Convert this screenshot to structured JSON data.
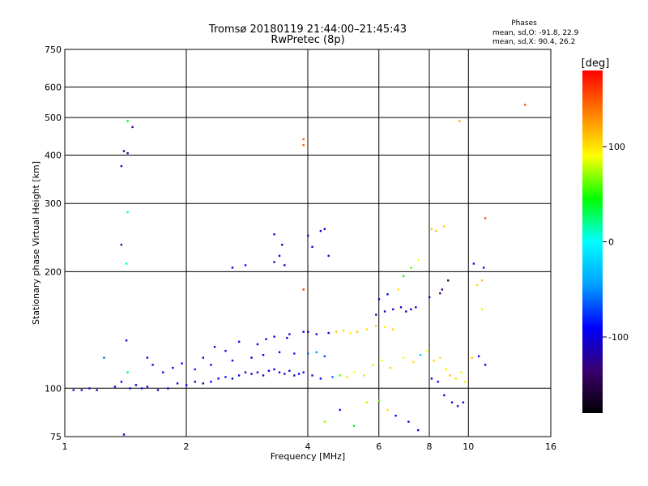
{
  "chart_data": {
    "type": "scatter",
    "title": "Tromsø 20180119 21:44:00–21:45:43",
    "subtitle": "RwPretec (8p)",
    "xlabel": "Frequency [MHz]",
    "ylabel": "Stationary phase Virtual Height [km]",
    "x_scale": "log",
    "y_scale": "log",
    "xlim": [
      1,
      16
    ],
    "ylim": [
      75,
      750
    ],
    "x_ticks": [
      "1",
      "2",
      "4",
      "6",
      "8",
      "10",
      "16"
    ],
    "y_ticks": [
      "75",
      "100",
      "200",
      "300",
      "400",
      "500",
      "600",
      "750"
    ],
    "grid": true,
    "phase_stats": {
      "heading": "Phases",
      "line_o": "mean, sd,O: -91.8, 22.9",
      "line_x": "mean, sd,X:  90.4, 26.2"
    },
    "colorbar": {
      "label": "[deg]",
      "range": [
        -180,
        180
      ],
      "ticks": [
        "100",
        "0",
        "-100"
      ],
      "colors": [
        "#000000",
        "#3a006a",
        "#0000ff",
        "#00a0ff",
        "#00ffff",
        "#00ff00",
        "#ffff00",
        "#ff8000",
        "#ff0000"
      ]
    },
    "series": [
      {
        "values": [
          [
            1.05,
            99,
            -105
          ],
          [
            1.1,
            99,
            -110
          ],
          [
            1.15,
            100,
            -100
          ],
          [
            1.2,
            99,
            -108
          ],
          [
            1.33,
            101,
            -95
          ],
          [
            1.38,
            104,
            -90
          ],
          [
            1.45,
            100,
            -110
          ],
          [
            1.5,
            102,
            -105
          ],
          [
            1.55,
            100,
            -85
          ],
          [
            1.6,
            101,
            -100
          ],
          [
            1.7,
            99,
            -112
          ],
          [
            1.8,
            100,
            -96
          ],
          [
            1.9,
            103,
            -104
          ],
          [
            2.0,
            102,
            -88
          ],
          [
            2.1,
            104,
            -100
          ],
          [
            2.2,
            103,
            -115
          ],
          [
            2.3,
            104,
            -92
          ],
          [
            2.4,
            106,
            -100
          ],
          [
            2.5,
            107,
            -86
          ],
          [
            2.6,
            106,
            -110
          ],
          [
            2.7,
            108,
            -98
          ],
          [
            2.8,
            110,
            -105
          ],
          [
            2.9,
            109,
            -90
          ],
          [
            3.0,
            110,
            -100
          ],
          [
            3.1,
            108,
            -108
          ],
          [
            3.2,
            111,
            -95
          ],
          [
            3.3,
            112,
            -102
          ],
          [
            3.4,
            110,
            -88
          ],
          [
            3.5,
            109,
            -112
          ],
          [
            3.6,
            111,
            -97
          ],
          [
            3.7,
            108,
            -104
          ],
          [
            3.8,
            109,
            -93
          ],
          [
            3.9,
            110,
            -100
          ],
          [
            2.1,
            112,
            -80
          ],
          [
            2.3,
            115,
            -95
          ],
          [
            2.6,
            118,
            -88
          ],
          [
            2.9,
            120,
            -102
          ],
          [
            3.1,
            122,
            -90
          ],
          [
            3.4,
            124,
            -98
          ],
          [
            3.7,
            123,
            -85
          ],
          [
            4.0,
            123,
            -60
          ],
          [
            4.2,
            124,
            -50
          ],
          [
            4.4,
            121,
            -70
          ],
          [
            1.75,
            110,
            -100
          ],
          [
            1.85,
            113,
            -92
          ],
          [
            1.95,
            116,
            -86
          ],
          [
            2.2,
            120,
            -104
          ],
          [
            2.5,
            125,
            -96
          ],
          [
            3.0,
            130,
            -92
          ],
          [
            3.3,
            136,
            -88
          ],
          [
            3.6,
            138,
            -100
          ],
          [
            3.9,
            140,
            -94
          ],
          [
            4.0,
            140,
            -110
          ],
          [
            4.2,
            138,
            -105
          ],
          [
            4.5,
            139,
            -98
          ],
          [
            4.1,
            108,
            -102
          ],
          [
            4.3,
            106,
            -92
          ],
          [
            4.6,
            107,
            -60
          ],
          [
            4.8,
            108,
            60
          ],
          [
            5.0,
            107,
            100
          ],
          [
            5.2,
            110,
            90
          ],
          [
            5.5,
            108,
            80
          ],
          [
            4.7,
            140,
            110
          ],
          [
            4.9,
            141,
            105
          ],
          [
            5.1,
            139,
            95
          ],
          [
            5.3,
            140,
            110
          ],
          [
            5.6,
            142,
            100
          ],
          [
            5.9,
            145,
            108
          ],
          [
            6.2,
            144,
            96
          ],
          [
            6.5,
            142,
            104
          ],
          [
            5.9,
            155,
            -105
          ],
          [
            6.2,
            158,
            -112
          ],
          [
            6.5,
            160,
            -95
          ],
          [
            6.8,
            162,
            -108
          ],
          [
            7.0,
            158,
            -100
          ],
          [
            7.2,
            160,
            -115
          ],
          [
            7.4,
            162,
            -92
          ],
          [
            6.0,
            170,
            -100
          ],
          [
            6.3,
            175,
            -110
          ],
          [
            6.7,
            180,
            100
          ],
          [
            5.8,
            115,
            80
          ],
          [
            6.1,
            118,
            95
          ],
          [
            6.4,
            113,
            110
          ],
          [
            6.9,
            120,
            85
          ],
          [
            7.3,
            117,
            100
          ],
          [
            7.6,
            122,
            -20
          ],
          [
            7.9,
            125,
            90
          ],
          [
            8.2,
            118,
            105
          ],
          [
            8.5,
            120,
            100
          ],
          [
            8.8,
            112,
            95
          ],
          [
            9.0,
            108,
            110
          ],
          [
            9.3,
            106,
            100
          ],
          [
            9.6,
            110,
            85
          ],
          [
            9.8,
            104,
            98
          ],
          [
            8.1,
            106,
            -110
          ],
          [
            8.4,
            104,
            -100
          ],
          [
            8.7,
            96,
            -95
          ],
          [
            9.1,
            92,
            -105
          ],
          [
            9.4,
            90,
            -108
          ],
          [
            9.7,
            92,
            -115
          ],
          [
            6.0,
            93,
            60
          ],
          [
            6.3,
            88,
            100
          ],
          [
            6.6,
            85,
            -110
          ],
          [
            7.1,
            82,
            -100
          ],
          [
            7.5,
            78,
            -95
          ],
          [
            4.4,
            82,
            70
          ],
          [
            4.8,
            88,
            -100
          ],
          [
            5.2,
            80,
            40
          ],
          [
            5.6,
            92,
            80
          ],
          [
            8.0,
            172,
            -130
          ],
          [
            8.5,
            176,
            -140
          ],
          [
            8.9,
            190,
            -150
          ],
          [
            8.6,
            180,
            -135
          ],
          [
            10.5,
            185,
            100
          ],
          [
            10.8,
            190,
            110
          ],
          [
            10.3,
            210,
            -100
          ],
          [
            10.9,
            205,
            -105
          ],
          [
            10.8,
            160,
            95
          ],
          [
            11.0,
            115,
            -100
          ],
          [
            10.6,
            121,
            -90
          ],
          [
            10.2,
            120,
            110
          ],
          [
            8.3,
            255,
            110
          ],
          [
            8.7,
            262,
            105
          ],
          [
            8.1,
            258,
            110
          ],
          [
            7.5,
            215,
            90
          ],
          [
            7.2,
            205,
            60
          ],
          [
            6.9,
            195,
            40
          ],
          [
            4.0,
            248,
            -110
          ],
          [
            4.1,
            232,
            -100
          ],
          [
            4.3,
            255,
            -105
          ],
          [
            4.4,
            258,
            -98
          ],
          [
            4.5,
            220,
            -100
          ],
          [
            3.3,
            212,
            -110
          ],
          [
            3.4,
            220,
            -95
          ],
          [
            3.5,
            208,
            -105
          ],
          [
            3.3,
            250,
            -100
          ],
          [
            3.45,
            235,
            -112
          ],
          [
            2.6,
            205,
            -100
          ],
          [
            2.8,
            208,
            -90
          ],
          [
            1.4,
            410,
            -140
          ],
          [
            1.43,
            405,
            -130
          ],
          [
            1.47,
            473,
            -120
          ],
          [
            1.38,
            375,
            -100
          ],
          [
            1.38,
            235,
            -120
          ],
          [
            1.43,
            285,
            10
          ],
          [
            1.42,
            210,
            20
          ],
          [
            1.43,
            490,
            40
          ],
          [
            1.42,
            133,
            -110
          ],
          [
            1.43,
            110,
            30
          ],
          [
            3.9,
            440,
            150
          ],
          [
            3.9,
            425,
            150
          ],
          [
            3.9,
            180,
            160
          ],
          [
            9.5,
            490,
            120
          ],
          [
            11.0,
            275,
            150
          ],
          [
            13.8,
            540,
            150
          ],
          [
            1.25,
            120,
            -60
          ],
          [
            1.6,
            120,
            -90
          ],
          [
            1.4,
            76,
            -110
          ],
          [
            1.65,
            115,
            -98
          ],
          [
            2.35,
            128,
            -105
          ],
          [
            2.7,
            132,
            -100
          ],
          [
            3.15,
            134,
            -92
          ],
          [
            3.55,
            135,
            -110
          ]
        ]
      }
    ]
  }
}
